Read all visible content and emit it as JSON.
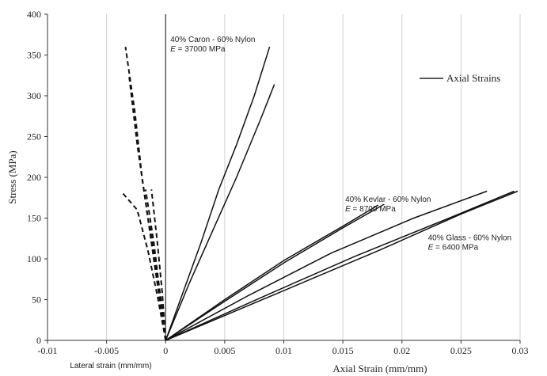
{
  "chart_data": {
    "type": "line",
    "xlabel": "Axial Strain (mm/mm)",
    "x_sublabel": "Lateral strain (mm/mm)",
    "ylabel": "Stress (MPa)",
    "xlim": [
      -0.01,
      0.03
    ],
    "ylim": [
      0,
      400
    ],
    "x_ticks": [
      "-0.01",
      "-0.005",
      "0",
      "0.005",
      "0.01",
      "0.015",
      "0.02",
      "0.025",
      "0.03"
    ],
    "y_ticks": [
      "0",
      "50",
      "100",
      "150",
      "200",
      "250",
      "300",
      "350",
      "400"
    ],
    "grid": "vertical",
    "legend": {
      "position": "right",
      "entries": [
        "Axial Strains"
      ]
    },
    "annotations": [
      {
        "line1": "40% Caron - 60% Nylon",
        "line2_symbol": "E",
        "line2_rest": " = 37000 MPa",
        "x": 0.0004,
        "y": 366
      },
      {
        "line1": "40% Kevlar - 60% Nylon",
        "line2_symbol": "E",
        "line2_rest": " = 8700 MPa",
        "x": 0.0152,
        "y": 170
      },
      {
        "line1": "40% Glass - 60% Nylon",
        "line2_symbol": "E",
        "line2_rest": " = 6400 MPa",
        "x": 0.0222,
        "y": 123
      }
    ],
    "series": [
      {
        "style": "solid",
        "points": [
          [
            0,
            0
          ],
          [
            0.0015,
            60
          ],
          [
            0.003,
            120
          ],
          [
            0.0045,
            185
          ],
          [
            0.006,
            240
          ],
          [
            0.0075,
            300
          ],
          [
            0.0088,
            360
          ]
        ]
      },
      {
        "style": "solid",
        "points": [
          [
            0,
            0
          ],
          [
            0.002,
            70
          ],
          [
            0.004,
            135
          ],
          [
            0.006,
            200
          ],
          [
            0.008,
            270
          ],
          [
            0.0092,
            314
          ]
        ]
      },
      {
        "style": "solid",
        "points": [
          [
            0,
            0
          ],
          [
            0.005,
            50
          ],
          [
            0.01,
            98
          ],
          [
            0.015,
            140
          ],
          [
            0.018,
            166
          ]
        ]
      },
      {
        "style": "solid",
        "points": [
          [
            0,
            0
          ],
          [
            0.005,
            48
          ],
          [
            0.01,
            95
          ],
          [
            0.015,
            138
          ],
          [
            0.0185,
            167
          ]
        ]
      },
      {
        "style": "solid",
        "points": [
          [
            0,
            0
          ],
          [
            0.007,
            55
          ],
          [
            0.014,
            107
          ],
          [
            0.021,
            150
          ],
          [
            0.0272,
            183
          ]
        ]
      },
      {
        "style": "solid",
        "points": [
          [
            0,
            0
          ],
          [
            0.008,
            52
          ],
          [
            0.016,
            103
          ],
          [
            0.024,
            150
          ],
          [
            0.0295,
            183
          ]
        ]
      },
      {
        "style": "solid",
        "points": [
          [
            0,
            0
          ],
          [
            0.009,
            55
          ],
          [
            0.018,
            110
          ],
          [
            0.025,
            155
          ],
          [
            0.0298,
            183
          ]
        ]
      },
      {
        "style": "dashed",
        "points": [
          [
            0,
            0
          ],
          [
            -0.001,
            100
          ],
          [
            -0.002,
            200
          ],
          [
            -0.0026,
            280
          ],
          [
            -0.0034,
            360
          ]
        ]
      },
      {
        "style": "dashed",
        "points": [
          [
            0,
            0
          ],
          [
            -0.0008,
            80
          ],
          [
            -0.0016,
            160
          ],
          [
            -0.0024,
            240
          ],
          [
            -0.0031,
            325
          ]
        ]
      },
      {
        "style": "dashed",
        "points": [
          [
            0,
            0
          ],
          [
            -0.0007,
            55
          ],
          [
            -0.0015,
            110
          ],
          [
            -0.0024,
            160
          ],
          [
            -0.0036,
            180
          ]
        ]
      },
      {
        "style": "dashed",
        "points": [
          [
            0,
            0
          ],
          [
            -0.0005,
            60
          ],
          [
            -0.001,
            120
          ],
          [
            -0.0017,
            185
          ]
        ]
      },
      {
        "style": "dashed",
        "points": [
          [
            0,
            0
          ],
          [
            -0.0003,
            60
          ],
          [
            -0.0007,
            120
          ],
          [
            -0.0012,
            185
          ]
        ]
      },
      {
        "style": "dashed",
        "points": [
          [
            0,
            0
          ],
          [
            -0.0004,
            50
          ],
          [
            -0.0009,
            100
          ],
          [
            -0.0013,
            145
          ]
        ]
      }
    ]
  }
}
